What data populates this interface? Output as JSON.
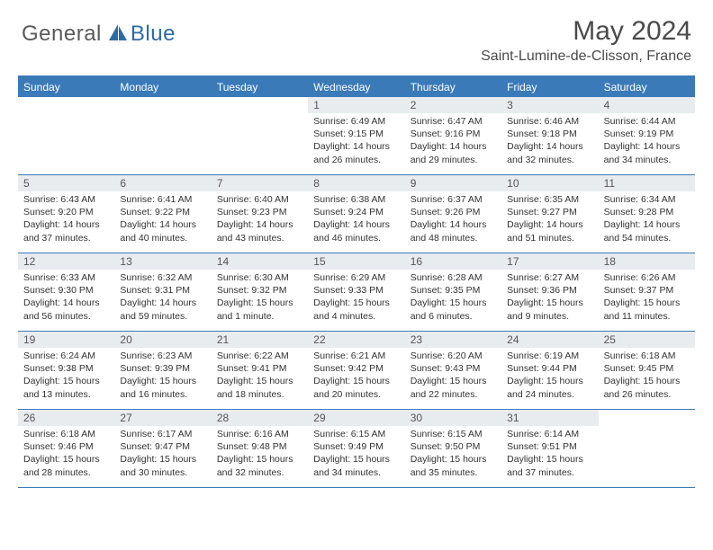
{
  "logo": {
    "general": "General",
    "blue": "Blue"
  },
  "title": "May 2024",
  "location": "Saint-Lumine-de-Clisson, France",
  "colors": {
    "header_blue": "#3a7ab8",
    "daynum_bg": "#e8ecef",
    "text": "#333333",
    "logo_grey": "#5a5a5a",
    "logo_blue": "#2d6aa8"
  },
  "day_names": [
    "Sunday",
    "Monday",
    "Tuesday",
    "Wednesday",
    "Thursday",
    "Friday",
    "Saturday"
  ],
  "weeks": [
    [
      null,
      null,
      null,
      {
        "n": "1",
        "sr": "6:49 AM",
        "ss": "9:15 PM",
        "dl": "14 hours and 26 minutes."
      },
      {
        "n": "2",
        "sr": "6:47 AM",
        "ss": "9:16 PM",
        "dl": "14 hours and 29 minutes."
      },
      {
        "n": "3",
        "sr": "6:46 AM",
        "ss": "9:18 PM",
        "dl": "14 hours and 32 minutes."
      },
      {
        "n": "4",
        "sr": "6:44 AM",
        "ss": "9:19 PM",
        "dl": "14 hours and 34 minutes."
      }
    ],
    [
      {
        "n": "5",
        "sr": "6:43 AM",
        "ss": "9:20 PM",
        "dl": "14 hours and 37 minutes."
      },
      {
        "n": "6",
        "sr": "6:41 AM",
        "ss": "9:22 PM",
        "dl": "14 hours and 40 minutes."
      },
      {
        "n": "7",
        "sr": "6:40 AM",
        "ss": "9:23 PM",
        "dl": "14 hours and 43 minutes."
      },
      {
        "n": "8",
        "sr": "6:38 AM",
        "ss": "9:24 PM",
        "dl": "14 hours and 46 minutes."
      },
      {
        "n": "9",
        "sr": "6:37 AM",
        "ss": "9:26 PM",
        "dl": "14 hours and 48 minutes."
      },
      {
        "n": "10",
        "sr": "6:35 AM",
        "ss": "9:27 PM",
        "dl": "14 hours and 51 minutes."
      },
      {
        "n": "11",
        "sr": "6:34 AM",
        "ss": "9:28 PM",
        "dl": "14 hours and 54 minutes."
      }
    ],
    [
      {
        "n": "12",
        "sr": "6:33 AM",
        "ss": "9:30 PM",
        "dl": "14 hours and 56 minutes."
      },
      {
        "n": "13",
        "sr": "6:32 AM",
        "ss": "9:31 PM",
        "dl": "14 hours and 59 minutes."
      },
      {
        "n": "14",
        "sr": "6:30 AM",
        "ss": "9:32 PM",
        "dl": "15 hours and 1 minute."
      },
      {
        "n": "15",
        "sr": "6:29 AM",
        "ss": "9:33 PM",
        "dl": "15 hours and 4 minutes."
      },
      {
        "n": "16",
        "sr": "6:28 AM",
        "ss": "9:35 PM",
        "dl": "15 hours and 6 minutes."
      },
      {
        "n": "17",
        "sr": "6:27 AM",
        "ss": "9:36 PM",
        "dl": "15 hours and 9 minutes."
      },
      {
        "n": "18",
        "sr": "6:26 AM",
        "ss": "9:37 PM",
        "dl": "15 hours and 11 minutes."
      }
    ],
    [
      {
        "n": "19",
        "sr": "6:24 AM",
        "ss": "9:38 PM",
        "dl": "15 hours and 13 minutes."
      },
      {
        "n": "20",
        "sr": "6:23 AM",
        "ss": "9:39 PM",
        "dl": "15 hours and 16 minutes."
      },
      {
        "n": "21",
        "sr": "6:22 AM",
        "ss": "9:41 PM",
        "dl": "15 hours and 18 minutes."
      },
      {
        "n": "22",
        "sr": "6:21 AM",
        "ss": "9:42 PM",
        "dl": "15 hours and 20 minutes."
      },
      {
        "n": "23",
        "sr": "6:20 AM",
        "ss": "9:43 PM",
        "dl": "15 hours and 22 minutes."
      },
      {
        "n": "24",
        "sr": "6:19 AM",
        "ss": "9:44 PM",
        "dl": "15 hours and 24 minutes."
      },
      {
        "n": "25",
        "sr": "6:18 AM",
        "ss": "9:45 PM",
        "dl": "15 hours and 26 minutes."
      }
    ],
    [
      {
        "n": "26",
        "sr": "6:18 AM",
        "ss": "9:46 PM",
        "dl": "15 hours and 28 minutes."
      },
      {
        "n": "27",
        "sr": "6:17 AM",
        "ss": "9:47 PM",
        "dl": "15 hours and 30 minutes."
      },
      {
        "n": "28",
        "sr": "6:16 AM",
        "ss": "9:48 PM",
        "dl": "15 hours and 32 minutes."
      },
      {
        "n": "29",
        "sr": "6:15 AM",
        "ss": "9:49 PM",
        "dl": "15 hours and 34 minutes."
      },
      {
        "n": "30",
        "sr": "6:15 AM",
        "ss": "9:50 PM",
        "dl": "15 hours and 35 minutes."
      },
      {
        "n": "31",
        "sr": "6:14 AM",
        "ss": "9:51 PM",
        "dl": "15 hours and 37 minutes."
      },
      null
    ]
  ],
  "labels": {
    "sunrise": "Sunrise:",
    "sunset": "Sunset:",
    "daylight": "Daylight:"
  }
}
